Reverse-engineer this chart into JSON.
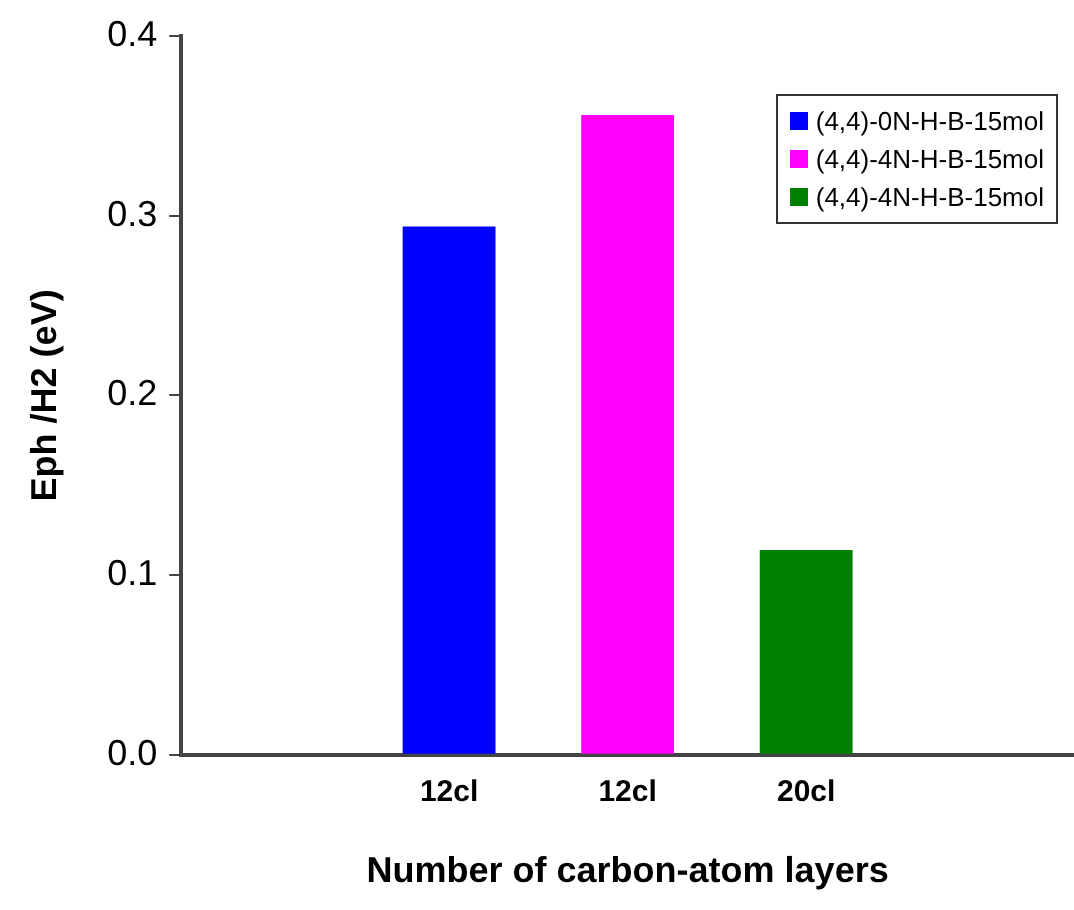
{
  "chart_data": {
    "type": "bar",
    "xlabel": "Number of carbon-atom layers",
    "ylabel": "Eph /H2 (eV)",
    "categories": [
      null,
      "12cl",
      "12cl",
      "20cl",
      null
    ],
    "series": [
      {
        "name": "(4,4)-0N-H-B-15mol",
        "color": "#0000ff",
        "values": [
          null,
          0.294,
          null,
          null,
          null
        ]
      },
      {
        "name": "(4,4)-4N-H-B-15mol",
        "color": "#ff00ff",
        "values": [
          null,
          null,
          0.356,
          null,
          null
        ]
      },
      {
        "name": "(4,4)-4N-H-B-15mol",
        "color": "#008000",
        "values": [
          null,
          null,
          null,
          0.114,
          null
        ]
      }
    ],
    "ylim": [
      0,
      0.4
    ],
    "yticks": [
      {
        "value": 0,
        "label": "0.0"
      },
      0.1,
      0.2,
      0.3,
      0.4
    ],
    "grid": false,
    "legend": "top right"
  }
}
